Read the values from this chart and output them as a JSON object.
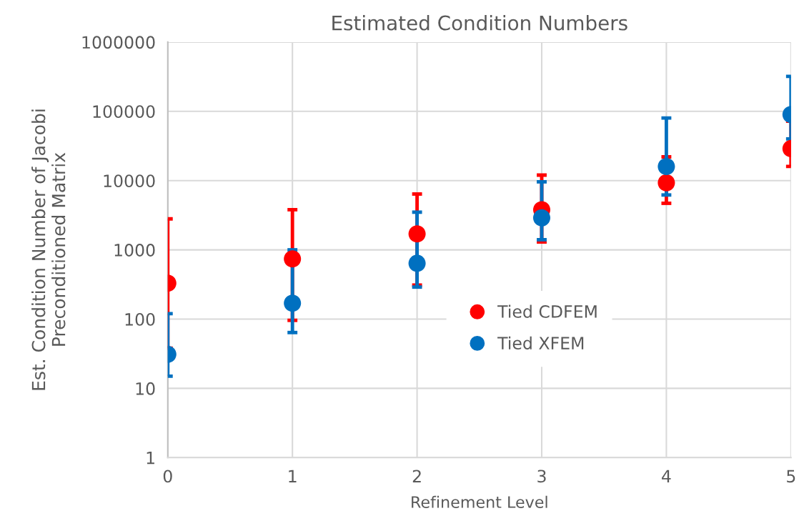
{
  "chart_data": {
    "type": "scatter",
    "title": "Estimated Condition Numbers",
    "xlabel": "Refinement Level",
    "ylabel": "Est. Condition Number of Jacobi\nPreconditioned Matrix",
    "x": [
      0,
      1,
      2,
      3,
      4,
      5
    ],
    "series": [
      {
        "name": "Tied CDFEM",
        "color": "#ff0000",
        "values": [
          330,
          740,
          1700,
          3800,
          9300,
          29000
        ],
        "errors": [
          [
            38,
            2800
          ],
          [
            96,
            3800
          ],
          [
            310,
            6400
          ],
          [
            1300,
            12000
          ],
          [
            4700,
            22000
          ],
          [
            16000,
            72000
          ]
        ]
      },
      {
        "name": "Tied XFEM",
        "color": "#0070c0",
        "values": [
          31,
          170,
          640,
          2900,
          16000,
          90000
        ],
        "errors": [
          [
            15,
            120
          ],
          [
            64,
            1000
          ],
          [
            290,
            3500
          ],
          [
            1400,
            9600
          ],
          [
            6200,
            80000
          ],
          [
            40000,
            320000
          ]
        ]
      }
    ],
    "log": "y",
    "xlim": [
      0,
      5
    ],
    "xticks": [
      0,
      1,
      2,
      3,
      4,
      5
    ],
    "ylim": [
      1,
      1000000
    ],
    "yticks": [
      1,
      10,
      100,
      1000,
      10000,
      100000,
      1000000
    ],
    "grid": true,
    "legend": "center",
    "marker": "circle"
  }
}
